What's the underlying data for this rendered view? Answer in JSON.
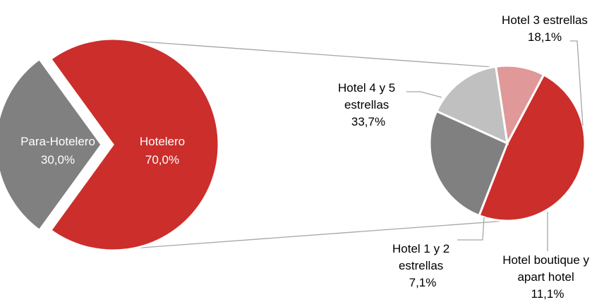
{
  "chart_data": [
    {
      "type": "pie",
      "slices": [
        {
          "label": "Hotelero",
          "value": 70.0,
          "value_label": "70,0%",
          "color": "#cc2e2b"
        },
        {
          "label": "Para-Hotelero",
          "value": 30.0,
          "value_label": "30,0%",
          "color": "#808080"
        }
      ],
      "exploded_slice": "Hotelero"
    },
    {
      "type": "pie",
      "slices": [
        {
          "label": "Hotel 4 y 5 estrellas",
          "value": 33.7,
          "value_label": "33,7%",
          "color": "#cc2e2b"
        },
        {
          "label": "Hotel 3 estrellas",
          "value": 18.1,
          "value_label": "18,1%",
          "color": "#808080"
        },
        {
          "label": "Hotel boutique y apart hotel",
          "value": 11.1,
          "value_label": "11,1%",
          "color": "#c0c0c0"
        },
        {
          "label": "Hotel 1 y 2 estrellas",
          "value": 7.1,
          "value_label": "7,1%",
          "color": "#e09898"
        }
      ],
      "total_value": 70.0
    }
  ]
}
